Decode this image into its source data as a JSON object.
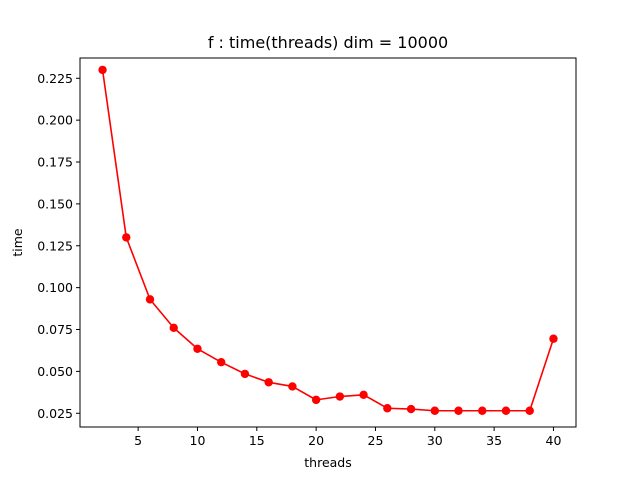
{
  "chart_data": {
    "type": "line",
    "title": "f : time(threads) dim = 10000",
    "xlabel": "threads",
    "ylabel": "time",
    "xlim": [
      0.1,
      41.9
    ],
    "ylim": [
      0.0168,
      0.2371
    ],
    "xticks": [
      5,
      10,
      15,
      20,
      25,
      30,
      35,
      40
    ],
    "xtick_labels": [
      "5",
      "10",
      "15",
      "20",
      "25",
      "30",
      "35",
      "40"
    ],
    "yticks": [
      0.025,
      0.05,
      0.075,
      0.1,
      0.125,
      0.15,
      0.175,
      0.2,
      0.225
    ],
    "ytick_labels": [
      "0.025",
      "0.050",
      "0.075",
      "0.100",
      "0.125",
      "0.150",
      "0.175",
      "0.200",
      "0.225"
    ],
    "grid": false,
    "legend": "none",
    "series": [
      {
        "color": "#ff0000",
        "marker": "circle",
        "x": [
          2,
          4,
          6,
          8,
          10,
          12,
          14,
          16,
          18,
          20,
          22,
          24,
          26,
          28,
          30,
          32,
          34,
          36,
          38,
          40
        ],
        "y": [
          0.23,
          0.13,
          0.093,
          0.076,
          0.0635,
          0.0555,
          0.0485,
          0.0435,
          0.041,
          0.033,
          0.035,
          0.036,
          0.028,
          0.0275,
          0.0265,
          0.0265,
          0.0265,
          0.0265,
          0.0265,
          0.0695
        ]
      }
    ]
  }
}
